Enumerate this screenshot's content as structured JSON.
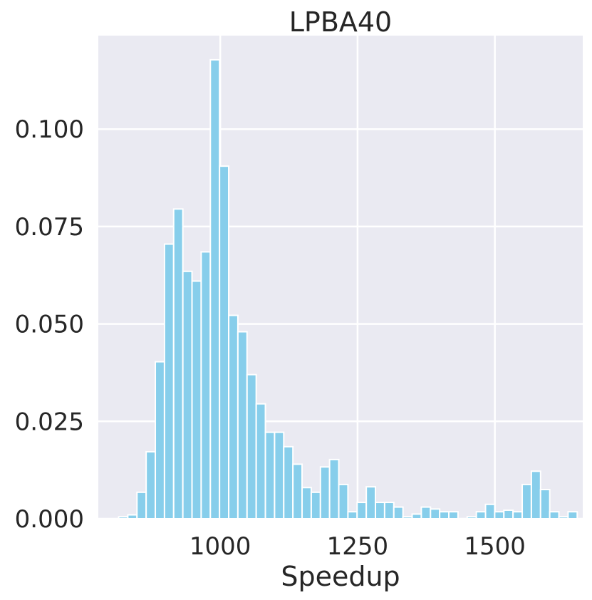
{
  "chart_data": {
    "type": "bar",
    "title": "LPBA40",
    "xlabel": "Speedup",
    "ylabel": "",
    "xlim": [
      778,
      1660
    ],
    "ylim": [
      0,
      0.124
    ],
    "xticks": [
      1000,
      1250,
      1500
    ],
    "xtick_labels": [
      "1000",
      "1250",
      "1500"
    ],
    "yticks": [
      0.0,
      0.025,
      0.05,
      0.075,
      0.1
    ],
    "ytick_labels": [
      "0.000",
      "0.025",
      "0.050",
      "0.075",
      "0.100"
    ],
    "grid": true,
    "background": "#EAEAF2",
    "bar_color": "#87CEEB",
    "bin_width": 16.7,
    "bin_start": 815,
    "values": [
      0.0005,
      0.001,
      0.0068,
      0.0172,
      0.0403,
      0.0705,
      0.0795,
      0.0635,
      0.061,
      0.0685,
      0.1178,
      0.0905,
      0.0522,
      0.048,
      0.037,
      0.0295,
      0.0222,
      0.0222,
      0.0185,
      0.014,
      0.008,
      0.0068,
      0.0133,
      0.0152,
      0.0088,
      0.0018,
      0.0042,
      0.0082,
      0.0042,
      0.0042,
      0.003,
      0.0005,
      0.0012,
      0.003,
      0.0025,
      0.0018,
      0.0018,
      0.0,
      0.0005,
      0.0018,
      0.0037,
      0.0018,
      0.0022,
      0.0018,
      0.0088,
      0.0122,
      0.0075,
      0.0018,
      0.0005,
      0.0018
    ]
  }
}
